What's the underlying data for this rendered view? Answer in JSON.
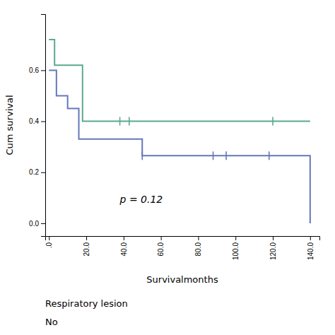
{
  "chart_data": {
    "type": "step",
    "xlabel": "Survivalmonths",
    "ylabel": "Cum survival",
    "xlim": [
      -2,
      145
    ],
    "ylim": [
      -0.05,
      0.82
    ],
    "xticks": [
      {
        "value": 0,
        "label": ".0"
      },
      {
        "value": 20,
        "label": "20.0"
      },
      {
        "value": 40,
        "label": "40.0"
      },
      {
        "value": 60,
        "label": "60.0"
      },
      {
        "value": 80,
        "label": "80.0"
      },
      {
        "value": 100,
        "label": "100.0"
      },
      {
        "value": 120,
        "label": "120.0"
      },
      {
        "value": 140,
        "label": "140.0"
      }
    ],
    "yticks": [
      {
        "value": 0.0,
        "label": "0.0"
      },
      0.2,
      0.4,
      0.6
    ],
    "grid": false,
    "series": [
      {
        "type": "step",
        "color": "#5aaa8c",
        "x": [
          0,
          3,
          3,
          18,
          18,
          38,
          38,
          47,
          47,
          140
        ],
        "values": [
          0.72,
          0.72,
          0.62,
          0.62,
          0.4,
          0.4,
          0.4,
          0.4,
          0.4,
          0.4
        ]
      },
      {
        "type": "step",
        "color": "#6677bb",
        "x": [
          0,
          4,
          4,
          10,
          10,
          16,
          16,
          50,
          50,
          135,
          135,
          140
        ],
        "values": [
          0.6,
          0.6,
          0.5,
          0.5,
          0.45,
          0.45,
          0.33,
          0.33,
          0.265,
          0.265,
          0.265,
          0.0
        ]
      },
      {
        "type": "scatter",
        "marker": "tick",
        "color": "#5aaa8c",
        "x": [
          38,
          43,
          120
        ],
        "values": [
          0.4,
          0.4,
          0.4
        ]
      },
      {
        "type": "scatter",
        "marker": "tick",
        "color": "#6677bb",
        "x": [
          50,
          88,
          95,
          118
        ],
        "values": [
          0.265,
          0.265,
          0.265,
          0.265
        ]
      }
    ],
    "annotations": [
      {
        "text": "p = 0.12",
        "x": 38,
        "y": 0.08
      },
      {
        "text": "Respiratory lesion"
      },
      {
        "text": "No"
      }
    ]
  }
}
